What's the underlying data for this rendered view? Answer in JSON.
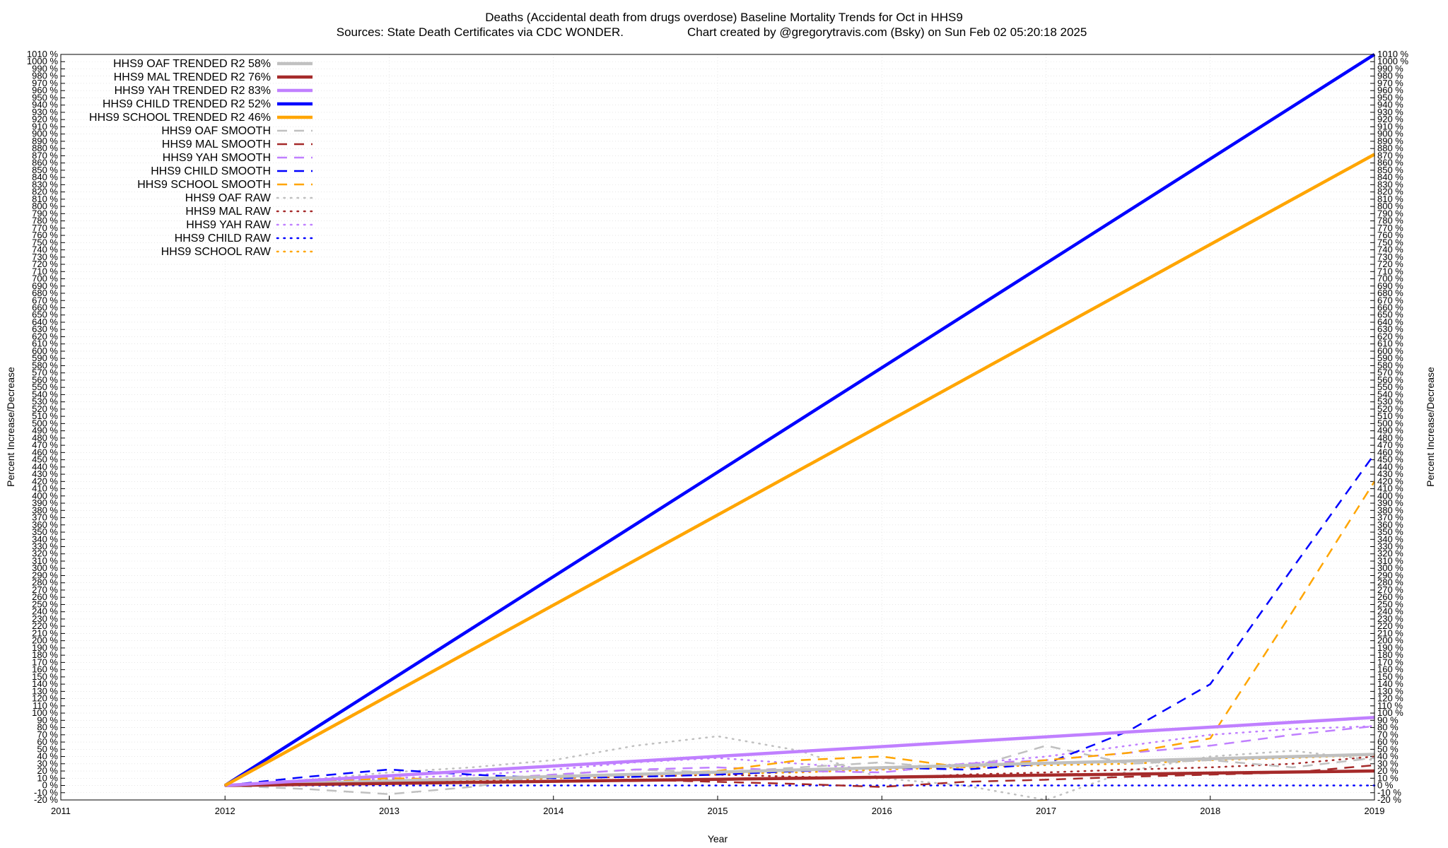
{
  "chart_data": {
    "type": "line",
    "title": "Deaths (Accidental death from drugs overdose)  Baseline Mortality Trends for Oct in HHS9",
    "subtitle_left": "Sources: State Death Certificates via CDC WONDER.",
    "subtitle_right": "Chart created by @gregorytravis.com (Bsky) on Sun Feb 02 05:20:18 2025",
    "xlabel": "Year",
    "ylabel": "Percent Increase/Decrease",
    "y2label": "Percent Increase/Decrease",
    "xlim": [
      2011,
      2019
    ],
    "ylim": [
      -20,
      1010
    ],
    "x_ticks": [
      "2011",
      "2012",
      "2013",
      "2014",
      "2015",
      "2016",
      "2017",
      "2018",
      "2019"
    ],
    "y_tick_step": 10,
    "y_tick_suffix": " %",
    "grid": true,
    "legend_position": "top-left",
    "series": [
      {
        "name": "HHS9 OAF TRENDED R2  58%",
        "style": "solid-thick",
        "color": "#c0c0c0",
        "x": [
          2012,
          2019
        ],
        "y": [
          0,
          43
        ]
      },
      {
        "name": "HHS9 MAL TRENDED R2  76%",
        "style": "solid-thick",
        "color": "#a52a2a",
        "x": [
          2012,
          2019
        ],
        "y": [
          0,
          20
        ]
      },
      {
        "name": "HHS9 YAH TRENDED R2  83%",
        "style": "solid-thick",
        "color": "#c080ff",
        "x": [
          2012,
          2019
        ],
        "y": [
          0,
          94
        ]
      },
      {
        "name": "HHS9 CHILD TRENDED R2  52%",
        "style": "solid-thick",
        "color": "#0000ff",
        "x": [
          2012,
          2019
        ],
        "y": [
          0,
          1010
        ]
      },
      {
        "name": "HHS9 SCHOOL TRENDED R2  46%",
        "style": "solid-thick",
        "color": "#ffa500",
        "x": [
          2012,
          2019
        ],
        "y": [
          0,
          872
        ]
      },
      {
        "name": "HHS9 OAF SMOOTH",
        "style": "dashed",
        "color": "#c0c0c0",
        "x": [
          2012,
          2012.5,
          2013,
          2013.5,
          2014,
          2014.5,
          2015,
          2015.5,
          2016,
          2016.5,
          2017,
          2017.5,
          2018,
          2018.5,
          2019
        ],
        "y": [
          0,
          -5,
          -12,
          -2,
          15,
          22,
          18,
          25,
          32,
          22,
          55,
          30,
          35,
          25,
          38
        ]
      },
      {
        "name": "HHS9 MAL SMOOTH",
        "style": "dashed",
        "color": "#a52a2a",
        "x": [
          2012,
          2012.5,
          2013,
          2013.5,
          2014,
          2014.5,
          2015,
          2015.5,
          2016,
          2016.5,
          2017,
          2017.5,
          2018,
          2018.5,
          2019
        ],
        "y": [
          0,
          3,
          5,
          4,
          6,
          8,
          5,
          2,
          -2,
          5,
          8,
          12,
          15,
          18,
          28
        ]
      },
      {
        "name": "HHS9 YAH SMOOTH",
        "style": "dashed",
        "color": "#c080ff",
        "x": [
          2012,
          2012.5,
          2013,
          2013.5,
          2014,
          2014.5,
          2015,
          2015.5,
          2016,
          2016.5,
          2017,
          2017.5,
          2018,
          2018.5,
          2019
        ],
        "y": [
          0,
          5,
          10,
          8,
          15,
          22,
          25,
          20,
          18,
          30,
          35,
          45,
          55,
          70,
          82
        ]
      },
      {
        "name": "HHS9 CHILD SMOOTH",
        "style": "dashed",
        "color": "#0000ff",
        "x": [
          2012,
          2012.5,
          2013,
          2013.5,
          2014,
          2014.5,
          2015,
          2015.5,
          2016,
          2016.5,
          2017,
          2017.5,
          2018,
          2018.5,
          2019
        ],
        "y": [
          0,
          12,
          22,
          15,
          10,
          12,
          15,
          20,
          25,
          22,
          30,
          75,
          140,
          300,
          458
        ]
      },
      {
        "name": "HHS9 SCHOOL SMOOTH",
        "style": "dashed",
        "color": "#ffa500",
        "x": [
          2012,
          2012.5,
          2013,
          2013.5,
          2014,
          2014.5,
          2015,
          2015.5,
          2016,
          2016.5,
          2017,
          2017.5,
          2018,
          2018.5,
          2019
        ],
        "y": [
          0,
          5,
          10,
          8,
          12,
          15,
          20,
          35,
          40,
          25,
          35,
          45,
          65,
          240,
          420
        ]
      },
      {
        "name": "HHS9 OAF RAW",
        "style": "dotted",
        "color": "#c0c0c0",
        "x": [
          2012,
          2012.5,
          2013,
          2013.5,
          2014,
          2014.5,
          2015,
          2015.5,
          2016,
          2016.5,
          2017,
          2017.5,
          2018,
          2018.5,
          2019
        ],
        "y": [
          0,
          8,
          18,
          25,
          35,
          55,
          68,
          48,
          10,
          0,
          -20,
          20,
          40,
          48,
          35
        ]
      },
      {
        "name": "HHS9 MAL RAW",
        "style": "dotted",
        "color": "#a52a2a",
        "x": [
          2012,
          2012.5,
          2013,
          2013.5,
          2014,
          2014.5,
          2015,
          2015.5,
          2016,
          2016.5,
          2017,
          2017.5,
          2018,
          2018.5,
          2019
        ],
        "y": [
          0,
          4,
          8,
          6,
          10,
          12,
          15,
          12,
          10,
          15,
          18,
          22,
          25,
          30,
          40
        ]
      },
      {
        "name": "HHS9 YAH RAW",
        "style": "dotted",
        "color": "#c080ff",
        "x": [
          2012,
          2012.5,
          2013,
          2013.5,
          2014,
          2014.5,
          2015,
          2015.5,
          2016,
          2016.5,
          2017,
          2017.5,
          2018,
          2018.5,
          2019
        ],
        "y": [
          0,
          5,
          10,
          14,
          22,
          32,
          38,
          30,
          22,
          30,
          40,
          55,
          70,
          78,
          82
        ]
      },
      {
        "name": "HHS9 CHILD RAW",
        "style": "dotted",
        "color": "#0000ff",
        "x": [
          2012,
          2013,
          2014,
          2015,
          2016,
          2017,
          2018,
          2019
        ],
        "y": [
          0,
          0,
          0,
          0,
          0,
          0,
          0,
          0
        ]
      },
      {
        "name": "HHS9 SCHOOL RAW",
        "style": "dotted",
        "color": "#ffa500",
        "x": [
          2012,
          2012.5,
          2013,
          2013.5,
          2014,
          2014.5,
          2015,
          2015.5,
          2016,
          2016.5,
          2017,
          2017.5,
          2018,
          2018.5,
          2019
        ],
        "y": [
          0,
          3,
          6,
          8,
          10,
          14,
          16,
          18,
          22,
          25,
          28,
          30,
          35,
          38,
          42
        ]
      }
    ]
  }
}
